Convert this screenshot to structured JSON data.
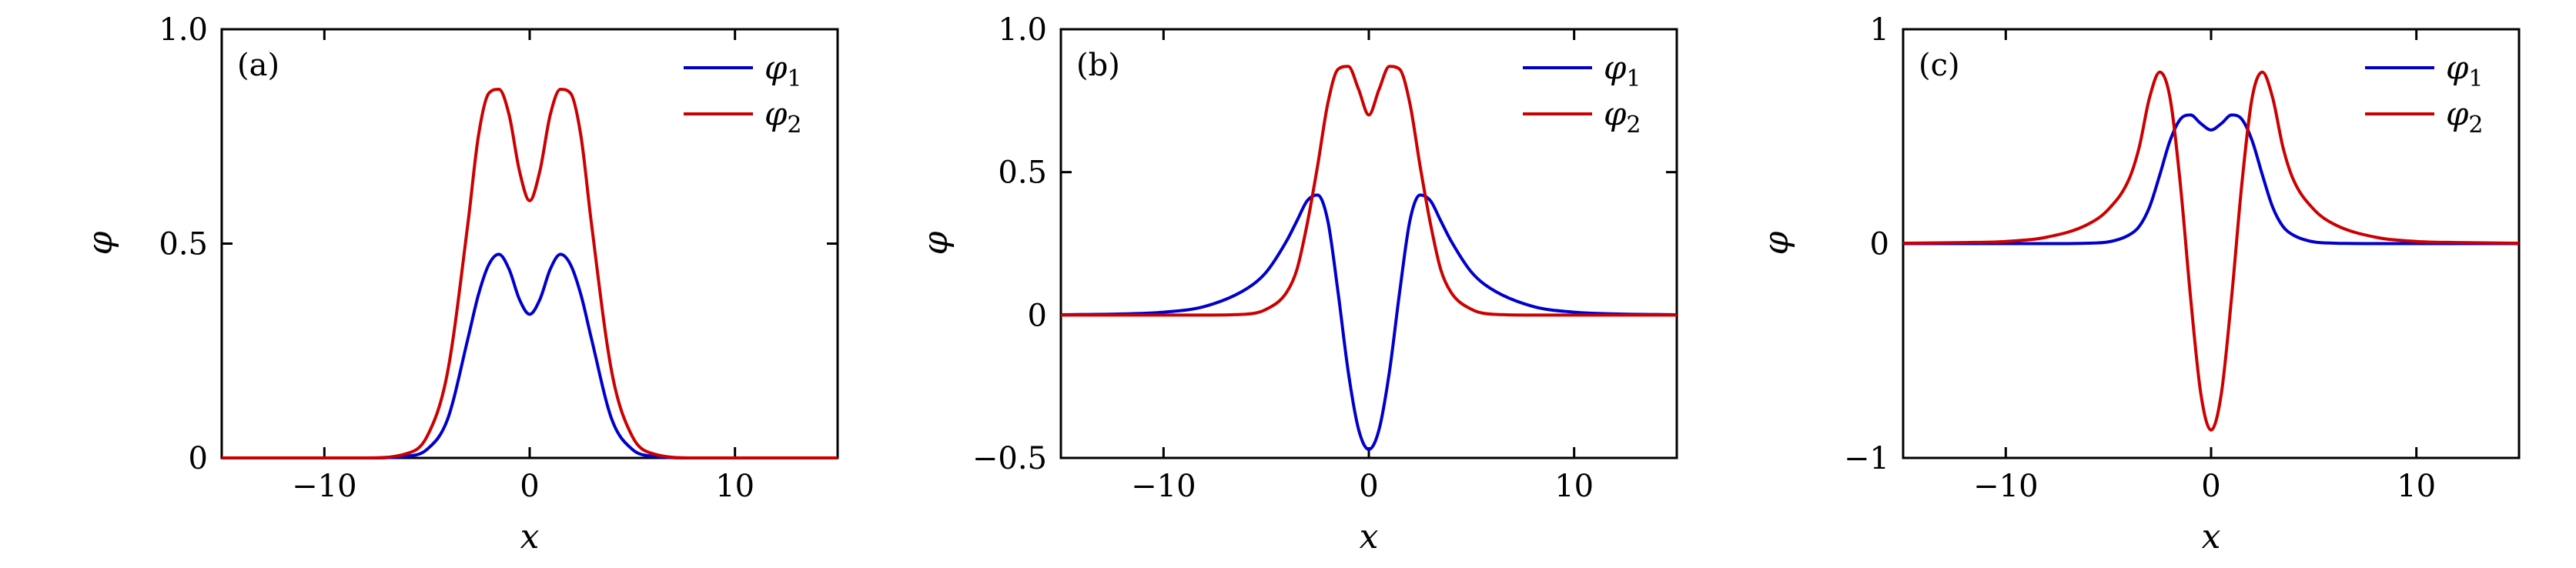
{
  "chart_data": [
    {
      "type": "line",
      "panel_label": "(a)",
      "xlabel": "x",
      "ylabel": "φ",
      "xlim": [
        -15,
        15
      ],
      "ylim": [
        0,
        1.0
      ],
      "xticks": [
        {
          "value": -10,
          "label": "−10"
        },
        {
          "value": 0,
          "label": "0"
        },
        {
          "value": 10,
          "label": "10"
        }
      ],
      "yticks": [
        {
          "value": 0,
          "label": "0"
        },
        {
          "value": 0.5,
          "label": "0.5"
        },
        {
          "value": 1.0,
          "label": "1.0"
        }
      ],
      "legend_position": "top-right",
      "series": [
        {
          "name": "φ1",
          "name_main": "φ",
          "name_sub": "1",
          "color": "#0000cc",
          "x": [
            -15,
            -8,
            -6,
            -5,
            -4,
            -3,
            -2.5,
            -2,
            -1.5,
            -1,
            -0.5,
            0,
            0.5,
            1,
            1.5,
            2,
            2.5,
            3,
            4,
            5,
            6,
            8,
            15
          ],
          "y": [
            0,
            0,
            0.004,
            0.02,
            0.09,
            0.28,
            0.38,
            0.45,
            0.475,
            0.44,
            0.37,
            0.335,
            0.37,
            0.44,
            0.475,
            0.45,
            0.38,
            0.28,
            0.09,
            0.02,
            0.004,
            0,
            0
          ]
        },
        {
          "name": "φ2",
          "name_main": "φ",
          "name_sub": "2",
          "color": "#cc0000",
          "x": [
            -15,
            -8,
            -6,
            -5,
            -4,
            -3,
            -2.5,
            -2,
            -1.5,
            -1,
            -0.5,
            0,
            0.5,
            1,
            1.5,
            2,
            2.5,
            3,
            4,
            5,
            6,
            8,
            15
          ],
          "y": [
            0,
            0,
            0.01,
            0.05,
            0.2,
            0.55,
            0.75,
            0.85,
            0.86,
            0.8,
            0.67,
            0.6,
            0.67,
            0.8,
            0.86,
            0.85,
            0.75,
            0.55,
            0.2,
            0.05,
            0.01,
            0,
            0
          ]
        }
      ]
    },
    {
      "type": "line",
      "panel_label": "(b)",
      "xlabel": "x",
      "ylabel": "φ",
      "xlim": [
        -15,
        15
      ],
      "ylim": [
        -0.5,
        1.0
      ],
      "xticks": [
        {
          "value": -10,
          "label": "−10"
        },
        {
          "value": 0,
          "label": "0"
        },
        {
          "value": 10,
          "label": "10"
        }
      ],
      "yticks": [
        {
          "value": -0.5,
          "label": "−0.5"
        },
        {
          "value": 0,
          "label": "0"
        },
        {
          "value": 0.5,
          "label": "0.5"
        },
        {
          "value": 1.0,
          "label": "1.0"
        }
      ],
      "legend_position": "top-right",
      "series": [
        {
          "name": "φ1",
          "name_main": "φ",
          "name_sub": "1",
          "color": "#0000cc",
          "x": [
            -15,
            -12,
            -10,
            -8,
            -6,
            -5,
            -4,
            -3.5,
            -3,
            -2.5,
            -2,
            -1.5,
            -1,
            -0.5,
            0,
            0.5,
            1,
            1.5,
            2,
            2.5,
            3,
            3.5,
            4,
            5,
            6,
            8,
            10,
            12,
            15
          ],
          "y": [
            0.001,
            0.004,
            0.01,
            0.03,
            0.09,
            0.15,
            0.26,
            0.33,
            0.4,
            0.42,
            0.33,
            0.08,
            -0.2,
            -0.4,
            -0.47,
            -0.4,
            -0.2,
            0.08,
            0.33,
            0.42,
            0.4,
            0.33,
            0.26,
            0.15,
            0.09,
            0.03,
            0.01,
            0.004,
            0.001
          ]
        },
        {
          "name": "φ2",
          "name_main": "φ",
          "name_sub": "2",
          "color": "#cc0000",
          "x": [
            -15,
            -8,
            -6,
            -5,
            -4,
            -3.5,
            -3,
            -2.5,
            -2,
            -1.5,
            -1,
            -0.5,
            0,
            0.5,
            1,
            1.5,
            2,
            2.5,
            3,
            3.5,
            4,
            5,
            6,
            8,
            15
          ],
          "y": [
            0,
            0,
            0.003,
            0.02,
            0.08,
            0.16,
            0.32,
            0.52,
            0.74,
            0.86,
            0.87,
            0.79,
            0.7,
            0.79,
            0.87,
            0.86,
            0.74,
            0.52,
            0.32,
            0.16,
            0.08,
            0.02,
            0.003,
            0,
            0
          ]
        }
      ]
    },
    {
      "type": "line",
      "panel_label": "(c)",
      "xlabel": "x",
      "ylabel": "φ",
      "xlim": [
        -15,
        15
      ],
      "ylim": [
        -1,
        1
      ],
      "xticks": [
        {
          "value": -10,
          "label": "−10"
        },
        {
          "value": 0,
          "label": "0"
        },
        {
          "value": 10,
          "label": "10"
        }
      ],
      "yticks": [
        {
          "value": -1,
          "label": "−1"
        },
        {
          "value": 0,
          "label": "0"
        },
        {
          "value": 1,
          "label": "1"
        }
      ],
      "legend_position": "top-right",
      "series": [
        {
          "name": "φ1",
          "name_main": "φ",
          "name_sub": "1",
          "color": "#0000cc",
          "x": [
            -15,
            -8,
            -6,
            -5,
            -4,
            -3.5,
            -3,
            -2.5,
            -2,
            -1.5,
            -1,
            -0.5,
            0,
            0.5,
            1,
            1.5,
            2,
            2.5,
            3,
            3.5,
            4,
            5,
            6,
            8,
            15
          ],
          "y": [
            0,
            0,
            0.002,
            0.008,
            0.04,
            0.08,
            0.17,
            0.32,
            0.48,
            0.58,
            0.6,
            0.56,
            0.53,
            0.56,
            0.6,
            0.58,
            0.48,
            0.32,
            0.17,
            0.08,
            0.04,
            0.008,
            0.002,
            0,
            0
          ]
        },
        {
          "name": "φ2",
          "name_main": "φ",
          "name_sub": "2",
          "color": "#cc0000",
          "x": [
            -15,
            -12,
            -10,
            -8,
            -6,
            -5,
            -4,
            -3.5,
            -3,
            -2.5,
            -2,
            -1.5,
            -1,
            -0.5,
            0,
            0.5,
            1,
            1.5,
            2,
            2.5,
            3,
            3.5,
            4,
            5,
            6,
            8,
            10,
            12,
            15
          ],
          "y": [
            0.002,
            0.005,
            0.01,
            0.03,
            0.09,
            0.16,
            0.3,
            0.45,
            0.68,
            0.8,
            0.68,
            0.28,
            -0.25,
            -0.7,
            -0.87,
            -0.7,
            -0.25,
            0.28,
            0.68,
            0.8,
            0.68,
            0.45,
            0.3,
            0.16,
            0.09,
            0.03,
            0.01,
            0.005,
            0.002
          ]
        }
      ]
    }
  ]
}
